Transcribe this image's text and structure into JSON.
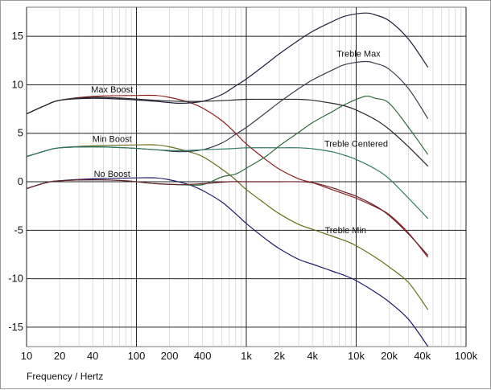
{
  "chart_data": {
    "type": "line",
    "title": "",
    "xlabel": "Frequency / Hertz",
    "ylabel": "",
    "x_scale": "log",
    "xlim": [
      10,
      100000
    ],
    "ylim": [
      -17,
      18
    ],
    "grid": true,
    "legend": "none",
    "x_ticks": [
      {
        "v": 10,
        "label": "10"
      },
      {
        "v": 20,
        "label": "20"
      },
      {
        "v": 40,
        "label": "40"
      },
      {
        "v": 100,
        "label": "100"
      },
      {
        "v": 200,
        "label": "200"
      },
      {
        "v": 400,
        "label": "400"
      },
      {
        "v": 1000,
        "label": "1k"
      },
      {
        "v": 2000,
        "label": "2k"
      },
      {
        "v": 4000,
        "label": "4k"
      },
      {
        "v": 10000,
        "label": "10k"
      },
      {
        "v": 20000,
        "label": "20k"
      },
      {
        "v": 40000,
        "label": "40k"
      },
      {
        "v": 100000,
        "label": "100k"
      }
    ],
    "y_ticks": [
      {
        "v": 15,
        "label": "15"
      },
      {
        "v": 10,
        "label": "10"
      },
      {
        "v": 5,
        "label": "5"
      },
      {
        "v": 0,
        "label": "0"
      },
      {
        "v": -5,
        "label": "-5"
      },
      {
        "v": -10,
        "label": "-10"
      },
      {
        "v": -15,
        "label": "-15"
      }
    ],
    "annotations": [
      {
        "text": "Max Boost",
        "x": 60,
        "y": 9.2
      },
      {
        "text": "Min Boost",
        "x": 60,
        "y": 4.1
      },
      {
        "text": "No Boost",
        "x": 60,
        "y": 0.5
      },
      {
        "text": "Treble Max",
        "x": 10500,
        "y": 12.9
      },
      {
        "text": "Treble Centered",
        "x": 10000,
        "y": 3.6
      },
      {
        "text": "Treble Min",
        "x": 8000,
        "y": -5.3
      }
    ],
    "series": [
      {
        "color": "#8b1f1f",
        "points": [
          [
            10,
            7
          ],
          [
            15,
            7.9
          ],
          [
            20,
            8.4
          ],
          [
            40,
            8.8
          ],
          [
            100,
            8.9
          ],
          [
            150,
            8.9
          ],
          [
            200,
            8.7
          ],
          [
            300,
            8.2
          ],
          [
            400,
            7.6
          ],
          [
            600,
            6.3
          ],
          [
            800,
            5
          ],
          [
            1000,
            3.9
          ],
          [
            1500,
            2.3
          ],
          [
            2000,
            1.3
          ],
          [
            3000,
            0.3
          ],
          [
            4000,
            -0.1
          ],
          [
            6000,
            -0.8
          ],
          [
            8000,
            -1.3
          ],
          [
            10000,
            -1.7
          ],
          [
            15000,
            -2.6
          ],
          [
            20000,
            -3.4
          ],
          [
            30000,
            -5.3
          ],
          [
            45000,
            -7.8
          ]
        ]
      },
      {
        "color": "#6b6b1a",
        "points": [
          [
            10,
            2.6
          ],
          [
            15,
            3.2
          ],
          [
            20,
            3.5
          ],
          [
            40,
            3.7
          ],
          [
            100,
            3.8
          ],
          [
            150,
            3.8
          ],
          [
            200,
            3.6
          ],
          [
            300,
            3.1
          ],
          [
            400,
            2.6
          ],
          [
            600,
            1.3
          ],
          [
            800,
            0.2
          ],
          [
            1000,
            -0.8
          ],
          [
            1500,
            -2.3
          ],
          [
            2000,
            -3.3
          ],
          [
            3000,
            -4.4
          ],
          [
            4000,
            -4.9
          ],
          [
            6000,
            -5.6
          ],
          [
            8000,
            -6.1
          ],
          [
            10000,
            -6.6
          ],
          [
            15000,
            -7.8
          ],
          [
            20000,
            -8.8
          ],
          [
            30000,
            -10.4
          ],
          [
            45000,
            -13.2
          ]
        ]
      },
      {
        "color": "#1a1a6b",
        "points": [
          [
            10,
            -0.7
          ],
          [
            15,
            -0.1
          ],
          [
            20,
            0.1
          ],
          [
            40,
            0.3
          ],
          [
            100,
            0.4
          ],
          [
            150,
            0.4
          ],
          [
            200,
            0.2
          ],
          [
            300,
            -0.3
          ],
          [
            400,
            -0.9
          ],
          [
            600,
            -2.1
          ],
          [
            800,
            -3.3
          ],
          [
            1000,
            -4.3
          ],
          [
            1500,
            -5.9
          ],
          [
            2000,
            -6.9
          ],
          [
            3000,
            -8
          ],
          [
            4000,
            -8.5
          ],
          [
            6000,
            -9.2
          ],
          [
            8000,
            -9.7
          ],
          [
            10000,
            -10.2
          ],
          [
            15000,
            -11.4
          ],
          [
            20000,
            -12.4
          ],
          [
            30000,
            -14.2
          ],
          [
            45000,
            -17
          ]
        ]
      },
      {
        "color": "#1f1f3a",
        "points": [
          [
            10,
            7
          ],
          [
            15,
            7.9
          ],
          [
            20,
            8.4
          ],
          [
            40,
            8.6
          ],
          [
            80,
            8.5
          ],
          [
            150,
            8.3
          ],
          [
            250,
            8.1
          ],
          [
            400,
            8.3
          ],
          [
            600,
            9
          ],
          [
            800,
            9.9
          ],
          [
            1000,
            10.6
          ],
          [
            1500,
            12.1
          ],
          [
            2000,
            13.2
          ],
          [
            3000,
            14.6
          ],
          [
            4000,
            15.5
          ],
          [
            6000,
            16.5
          ],
          [
            8000,
            17.1
          ],
          [
            12000,
            17.4
          ],
          [
            15000,
            17.2
          ],
          [
            20000,
            16.6
          ],
          [
            30000,
            14.7
          ],
          [
            45000,
            11.8
          ]
        ]
      },
      {
        "color": "#2a2a2a",
        "points": [
          [
            10,
            7
          ],
          [
            15,
            7.9
          ],
          [
            20,
            8.4
          ],
          [
            40,
            8.7
          ],
          [
            80,
            8.6
          ],
          [
            150,
            8.4
          ],
          [
            250,
            8.3
          ],
          [
            400,
            8.3
          ],
          [
            700,
            8.4
          ],
          [
            1000,
            8.5
          ],
          [
            2000,
            8.5
          ],
          [
            3000,
            8.5
          ],
          [
            4000,
            8.4
          ],
          [
            6000,
            8.1
          ],
          [
            8000,
            7.8
          ],
          [
            10000,
            7.4
          ],
          [
            15000,
            6.4
          ],
          [
            20000,
            5.4
          ],
          [
            30000,
            3.6
          ],
          [
            45000,
            1.6
          ]
        ]
      },
      {
        "color": "#3b3b4f",
        "points": [
          [
            10,
            2.6
          ],
          [
            15,
            3.2
          ],
          [
            20,
            3.5
          ],
          [
            40,
            3.6
          ],
          [
            80,
            3.5
          ],
          [
            150,
            3.3
          ],
          [
            250,
            3.1
          ],
          [
            400,
            3.3
          ],
          [
            600,
            4
          ],
          [
            800,
            4.9
          ],
          [
            1000,
            5.6
          ],
          [
            1500,
            7.1
          ],
          [
            2000,
            8.2
          ],
          [
            3000,
            9.6
          ],
          [
            4000,
            10.5
          ],
          [
            6000,
            11.5
          ],
          [
            8000,
            12.1
          ],
          [
            12000,
            12.4
          ],
          [
            15000,
            12.2
          ],
          [
            20000,
            11.6
          ],
          [
            30000,
            9.6
          ],
          [
            45000,
            6.5
          ]
        ]
      },
      {
        "color": "#2e7a66",
        "points": [
          [
            10,
            2.6
          ],
          [
            15,
            3.2
          ],
          [
            20,
            3.5
          ],
          [
            40,
            3.6
          ],
          [
            80,
            3.5
          ],
          [
            150,
            3.3
          ],
          [
            250,
            3.2
          ],
          [
            400,
            3.3
          ],
          [
            700,
            3.4
          ],
          [
            1000,
            3.5
          ],
          [
            2000,
            3.5
          ],
          [
            3000,
            3.5
          ],
          [
            4000,
            3.4
          ],
          [
            6000,
            3.1
          ],
          [
            8000,
            2.7
          ],
          [
            10000,
            2.3
          ],
          [
            15000,
            1.3
          ],
          [
            20000,
            0.3
          ],
          [
            30000,
            -1.7
          ],
          [
            45000,
            -3.8
          ]
        ]
      },
      {
        "color": "#2f6a3a",
        "points": [
          [
            10,
            -0.7
          ],
          [
            15,
            -0.1
          ],
          [
            20,
            0.1
          ],
          [
            40,
            0.2
          ],
          [
            80,
            0.1
          ],
          [
            150,
            -0.2
          ],
          [
            250,
            -0.3
          ],
          [
            400,
            -0.3
          ],
          [
            600,
            0.5
          ],
          [
            800,
            0.8
          ],
          [
            1000,
            1.4
          ],
          [
            1500,
            2.6
          ],
          [
            2000,
            3.7
          ],
          [
            3000,
            5.1
          ],
          [
            4000,
            6.1
          ],
          [
            6000,
            7.2
          ],
          [
            8000,
            8
          ],
          [
            12000,
            8.8
          ],
          [
            15000,
            8.6
          ],
          [
            20000,
            8.1
          ],
          [
            30000,
            5.6
          ],
          [
            45000,
            2.8
          ]
        ]
      },
      {
        "color": "#6b1f2a",
        "points": [
          [
            10,
            -0.7
          ],
          [
            15,
            -0.1
          ],
          [
            20,
            0.1
          ],
          [
            40,
            0.2
          ],
          [
            80,
            0.1
          ],
          [
            150,
            -0.2
          ],
          [
            250,
            -0.3
          ],
          [
            400,
            -0.2
          ],
          [
            700,
            0
          ],
          [
            1000,
            0
          ],
          [
            2000,
            0
          ],
          [
            3000,
            0
          ],
          [
            4000,
            -0.1
          ],
          [
            6000,
            -0.6
          ],
          [
            8000,
            -1.1
          ],
          [
            10000,
            -1.5
          ],
          [
            15000,
            -2.5
          ],
          [
            20000,
            -3.5
          ],
          [
            30000,
            -5.4
          ],
          [
            45000,
            -7.6
          ]
        ]
      }
    ]
  }
}
